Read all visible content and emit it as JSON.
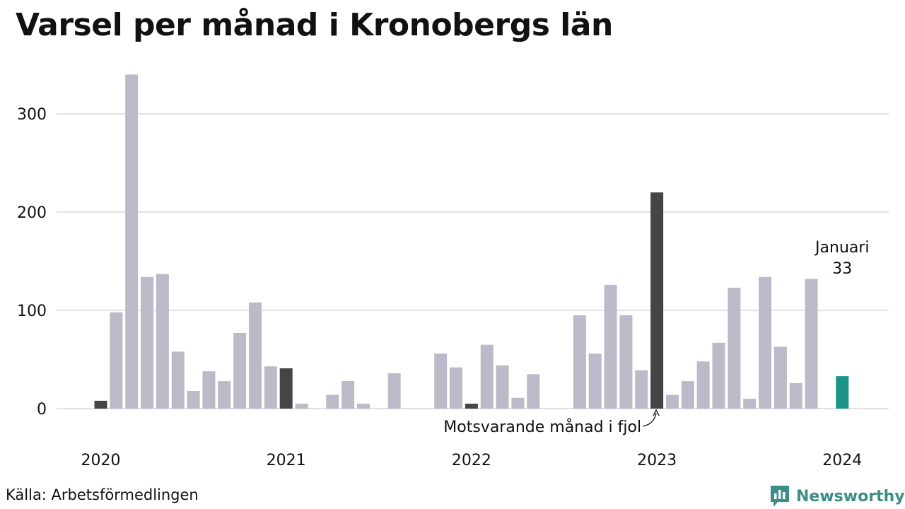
{
  "title": "Varsel per månad i Kronobergs län",
  "source": "Källa: Arbetsförmedlingen",
  "brand": {
    "name": "Newsworthy",
    "icon": "bar-chart-logo-icon"
  },
  "colors": {
    "bar_default": "#bcbac8",
    "bar_same_month": "#454545",
    "bar_current": "#1a9588",
    "gridline": "#e2e2e6",
    "brand": "#3c8f85"
  },
  "chart_data": {
    "type": "bar",
    "title": "Varsel per månad i Kronobergs län",
    "xlabel": "",
    "ylabel": "",
    "ylim": [
      0,
      340
    ],
    "yticks": [
      0,
      100,
      200,
      300
    ],
    "x_tick_labels": [
      "2020",
      "2021",
      "2022",
      "2023",
      "2024"
    ],
    "grid": true,
    "categories": [
      "2020-01",
      "2020-02",
      "2020-03",
      "2020-04",
      "2020-05",
      "2020-06",
      "2020-07",
      "2020-08",
      "2020-09",
      "2020-10",
      "2020-11",
      "2020-12",
      "2021-01",
      "2021-02",
      "2021-03",
      "2021-04",
      "2021-05",
      "2021-06",
      "2021-07",
      "2021-08",
      "2021-09",
      "2021-10",
      "2021-11",
      "2021-12",
      "2022-01",
      "2022-02",
      "2022-03",
      "2022-04",
      "2022-05",
      "2022-06",
      "2022-07",
      "2022-08",
      "2022-09",
      "2022-10",
      "2022-11",
      "2022-12",
      "2023-01",
      "2023-02",
      "2023-03",
      "2023-04",
      "2023-05",
      "2023-06",
      "2023-07",
      "2023-08",
      "2023-09",
      "2023-10",
      "2023-11",
      "2023-12",
      "2024-01"
    ],
    "values": [
      8,
      98,
      340,
      134,
      137,
      58,
      18,
      38,
      28,
      77,
      108,
      43,
      41,
      5,
      0,
      14,
      28,
      5,
      0,
      36,
      0,
      0,
      56,
      42,
      5,
      65,
      44,
      11,
      35,
      0,
      0,
      95,
      56,
      126,
      95,
      39,
      220,
      14,
      28,
      48,
      67,
      123,
      10,
      134,
      63,
      26,
      132,
      0,
      33
    ],
    "highlight_same_month": [
      "2020-01",
      "2021-01",
      "2022-01",
      "2023-01"
    ],
    "highlight_current": "2024-01",
    "annotations": {
      "current_label": "Januari",
      "current_value_label": "33",
      "same_month_label": "Motsvarande månad i fjol"
    }
  }
}
